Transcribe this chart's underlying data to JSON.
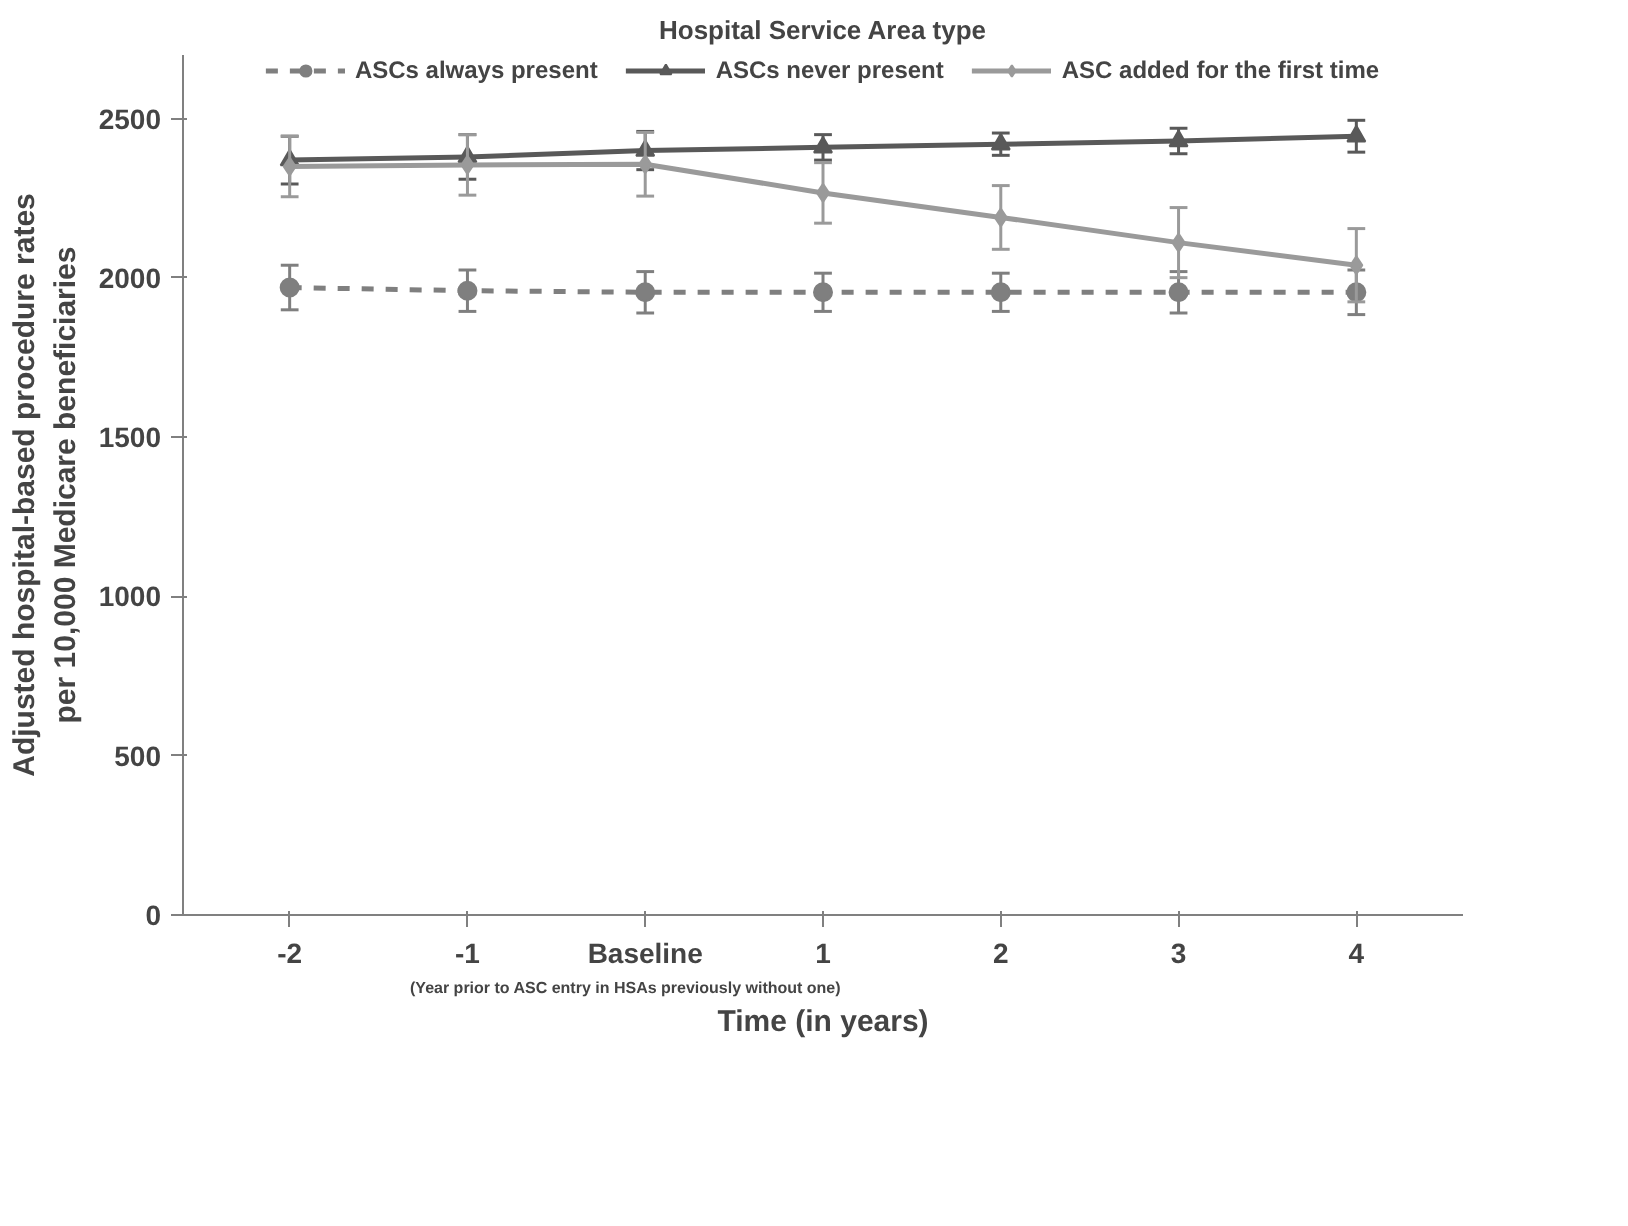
{
  "chart_data": {
    "type": "line",
    "legend_title": "Hospital Service Area type",
    "xlabel": "Time (in years)",
    "ylabel": "Adjusted hospital-based procedure rates per 10,000 Medicare beneficiaries",
    "categories": [
      "-2",
      "-1",
      "Baseline",
      "1",
      "2",
      "3",
      "4"
    ],
    "annotations": [
      "(Year prior to ASC entry in HSAs previously without one)"
    ],
    "ylim": [
      0,
      2700
    ],
    "yticks": [
      0,
      500,
      1000,
      1500,
      2000,
      2500
    ],
    "grid": false,
    "legend": "top",
    "series": [
      {
        "name": "ASCs always present",
        "color": "#7f7f7f",
        "line_style": "dashed",
        "marker": "circle",
        "values": [
          1970,
          1960,
          1955,
          1955,
          1955,
          1955,
          1955
        ],
        "errors": [
          70,
          65,
          65,
          60,
          60,
          65,
          70
        ]
      },
      {
        "name": "ASCs never present",
        "color": "#595959",
        "line_style": "solid",
        "marker": "triangle",
        "values": [
          2370,
          2380,
          2400,
          2410,
          2420,
          2430,
          2445
        ],
        "errors": [
          75,
          70,
          60,
          40,
          35,
          40,
          50
        ]
      },
      {
        "name": "ASC added for the first time",
        "color": "#9a9a9a",
        "line_style": "solid",
        "marker": "diamond",
        "values": [
          2350,
          2355,
          2357,
          2267,
          2190,
          2111,
          2040
        ],
        "errors": [
          95,
          95,
          100,
          95,
          100,
          110,
          115
        ]
      }
    ]
  }
}
